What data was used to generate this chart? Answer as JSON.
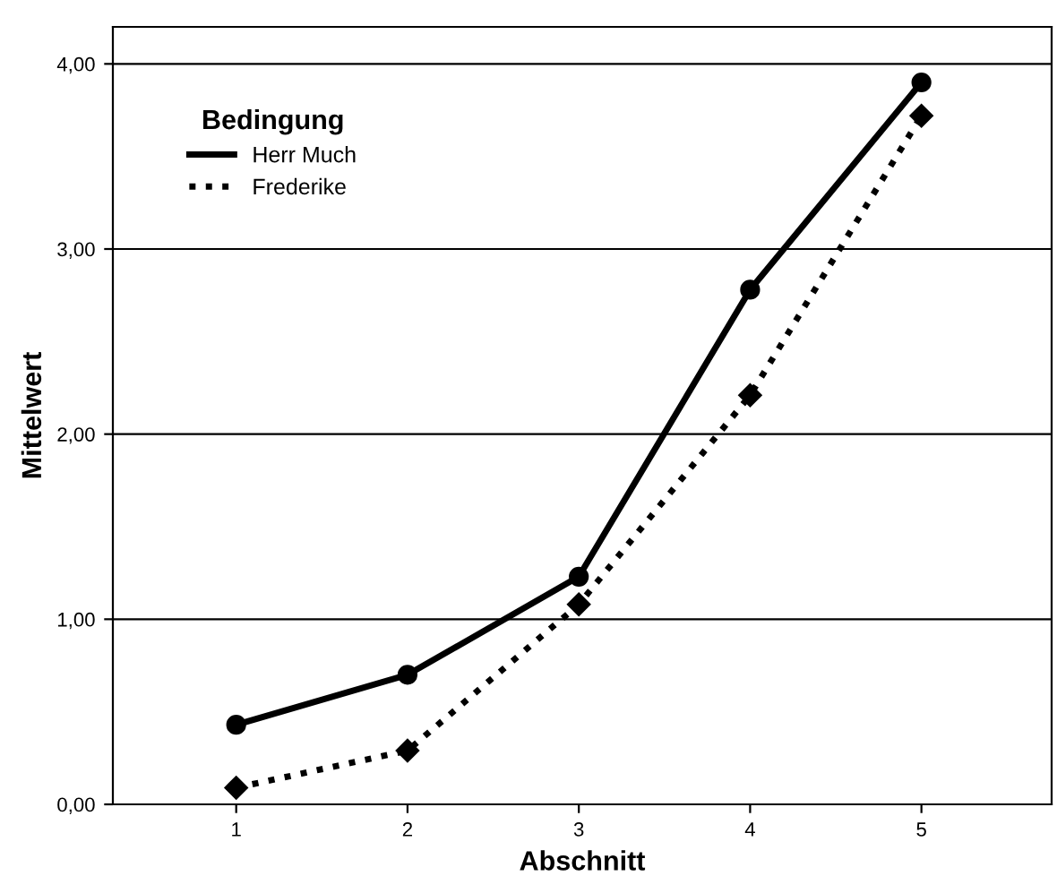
{
  "chart_data": {
    "type": "line",
    "xlabel": "Abschnitt",
    "ylabel": "Mittelwert",
    "legend_title": "Bedingung",
    "x": [
      1,
      2,
      3,
      4,
      5
    ],
    "xlim": [
      0.28,
      5.76
    ],
    "xticks": [
      1,
      2,
      3,
      4,
      5
    ],
    "ylim": [
      0,
      4.2
    ],
    "yticks": [
      {
        "value": 0,
        "label": "0,00"
      },
      {
        "value": 1,
        "label": "1,00"
      },
      {
        "value": 2,
        "label": "2,00"
      },
      {
        "value": 3,
        "label": "3,00"
      },
      {
        "value": 4,
        "label": "4,00"
      }
    ],
    "grid": "y",
    "legend": "top left",
    "series": [
      {
        "name": "Herr Much",
        "color": "#000000",
        "marker": "circle",
        "line_style": "solid",
        "values": [
          0.43,
          0.7,
          1.23,
          2.78,
          3.9
        ]
      },
      {
        "name": "Frederike",
        "color": "#000000",
        "marker": "diamond",
        "line_style": "dotted",
        "values": [
          0.09,
          0.29,
          1.08,
          2.21,
          3.72
        ]
      }
    ]
  }
}
